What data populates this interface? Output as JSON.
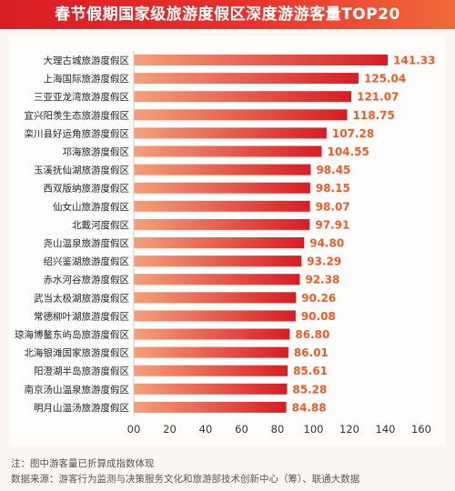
{
  "title": "春节假期国家级旅游度假区深度游游客量TOP20",
  "colors": {
    "bar_start": "#f4a07a",
    "bar_end": "#d81c24",
    "value_label": "#ee5a24",
    "title_bg": "#e02a27"
  },
  "chart_data": {
    "type": "bar",
    "orientation": "horizontal",
    "categories": [
      "大理古城旅游度假区",
      "上海国际旅游度假区",
      "三亚亚龙湾旅游度假区",
      "宜兴阳羡生态旅游度假区",
      "栾川县好运角旅游度假区",
      "邛海旅游度假区",
      "玉溪抚仙湖旅游度假区",
      "西双版纳旅游度假区",
      "仙女山旅游度假区",
      "北戴河度假区",
      "尧山温泉旅游度假区",
      "绍兴鉴湖旅游度假区",
      "赤水河谷旅游度假区",
      "武当太极湖旅游度假区",
      "常德柳叶湖旅游度假区",
      "琼海博鳌东屿岛旅游度假区",
      "北海银滩国家旅游度假区",
      "阳澄湖半岛旅游度假区",
      "南京汤山温泉旅游度假区",
      "明月山温汤旅游度假区"
    ],
    "values": [
      141.33,
      125.04,
      121.07,
      118.75,
      107.28,
      104.55,
      98.45,
      98.15,
      98.07,
      97.91,
      94.8,
      93.29,
      92.38,
      90.26,
      90.08,
      86.8,
      86.01,
      85.61,
      85.28,
      84.88
    ],
    "value_labels": [
      "141.33",
      "125.04",
      "121.07",
      "118.75",
      "107.28",
      "104.55",
      "98.45",
      "98.15",
      "98.07",
      "97.91",
      "94.80",
      "93.29",
      "92.38",
      "90.26",
      "90.08",
      "86.80",
      "86.01",
      "85.61",
      "85.28",
      "84.88"
    ],
    "xlim": [
      0,
      160
    ],
    "xticks": [
      "00",
      "20",
      "40",
      "60",
      "80",
      "100",
      "120",
      "140",
      "160"
    ],
    "grid": false,
    "legend": "none"
  },
  "notes": [
    "注：图中游客量已折算成指数体现",
    "数据来源：游客行为监测与决策服务文化和旅游部技术创新中心（筹）、联通大数据"
  ]
}
